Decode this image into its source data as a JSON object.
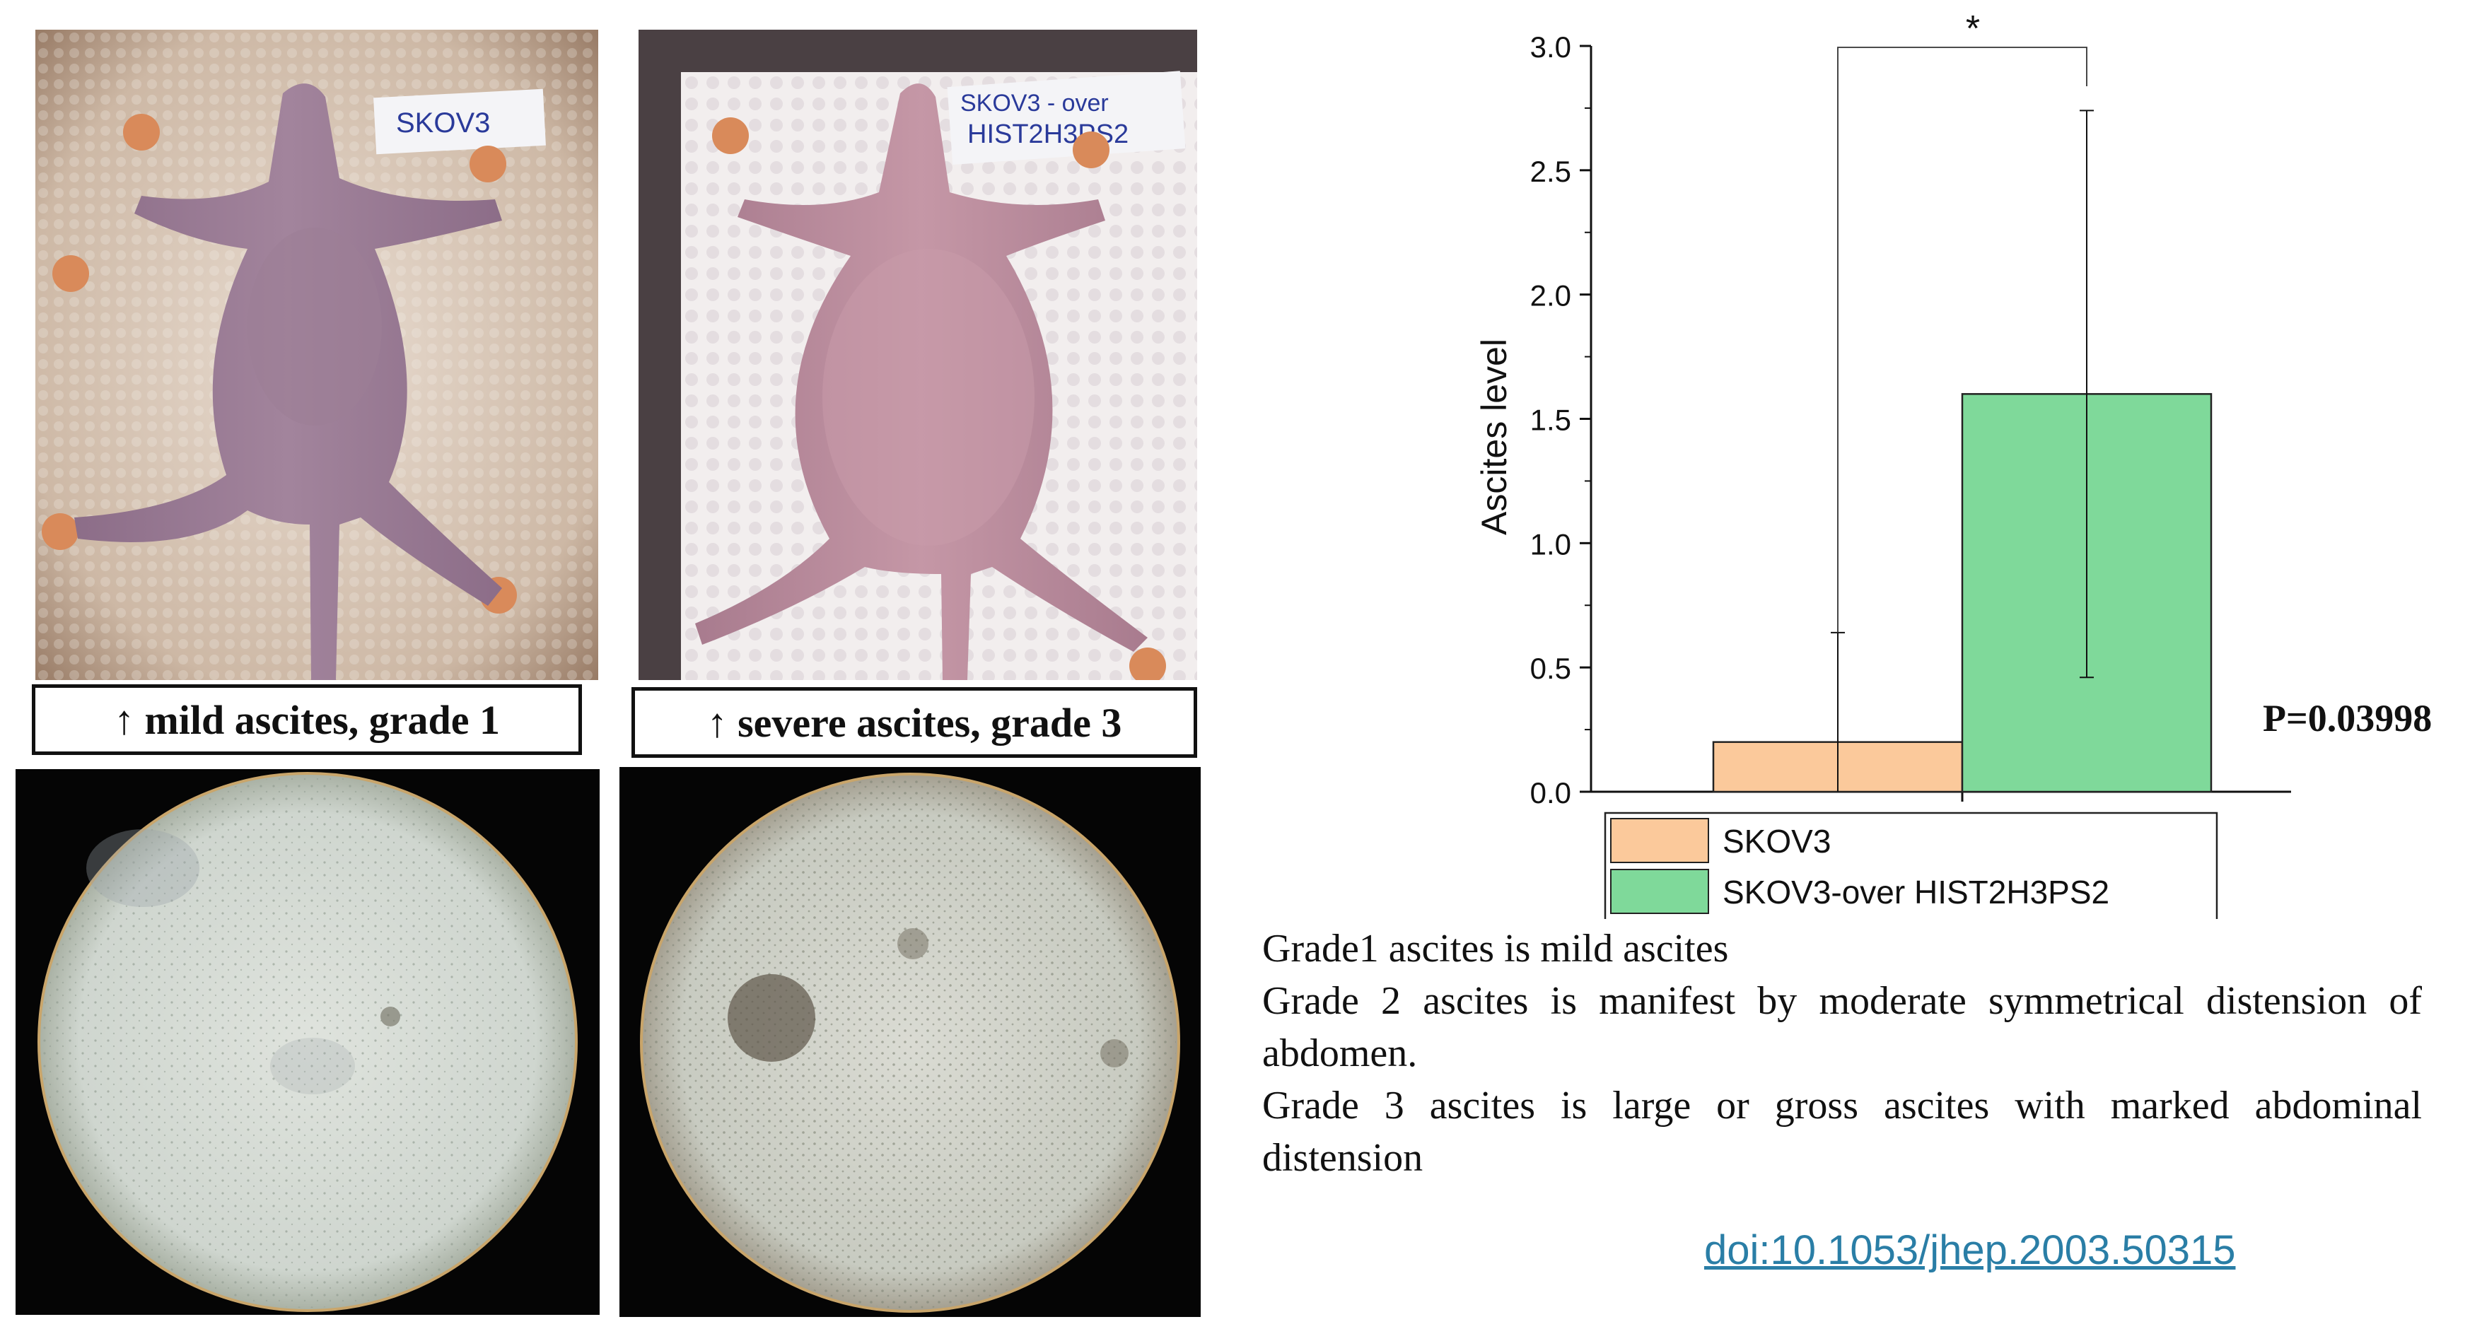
{
  "panels": {
    "mild_label": "↑ mild ascites, grade 1",
    "severe_label": "↑ severe ascites, grade 3",
    "mild_tag": "SKOV3",
    "severe_tag_line1": "SKOV3 - over",
    "severe_tag_line2": "HIST2H3PS2"
  },
  "colors": {
    "skov3_bar": "#fbc99b",
    "over_bar": "#7fd99a",
    "doi_link": "#2a7ea6"
  },
  "chart_data": {
    "type": "bar",
    "categories": [
      "SKOV3",
      "SKOV3-over HIST2H3PS2"
    ],
    "values": [
      0.2,
      1.6
    ],
    "errors": [
      [
        0.0,
        0.64
      ],
      [
        0.46,
        2.74
      ]
    ],
    "ylabel": "Ascites level",
    "ylim": [
      0,
      3.0
    ],
    "yticks": [
      "0.0",
      "0.5",
      "1.0",
      "1.5",
      "2.0",
      "2.5",
      "3.0"
    ],
    "significance_marker": "*",
    "p_value_text": "P=0.03998",
    "legend": [
      {
        "name": "SKOV3",
        "color": "#fbc99b"
      },
      {
        "name": "SKOV3-over HIST2H3PS2",
        "color": "#7fd99a"
      }
    ],
    "legend_position": "bottom"
  },
  "notes": {
    "line1": "Grade1 ascites is mild ascites",
    "line2": "Grade 2 ascites is manifest by moderate symmetrical distension of abdomen.",
    "line3": "Grade 3 ascites is large or gross ascites with marked abdominal distension"
  },
  "doi": "doi:10.1053/jhep.2003.50315"
}
